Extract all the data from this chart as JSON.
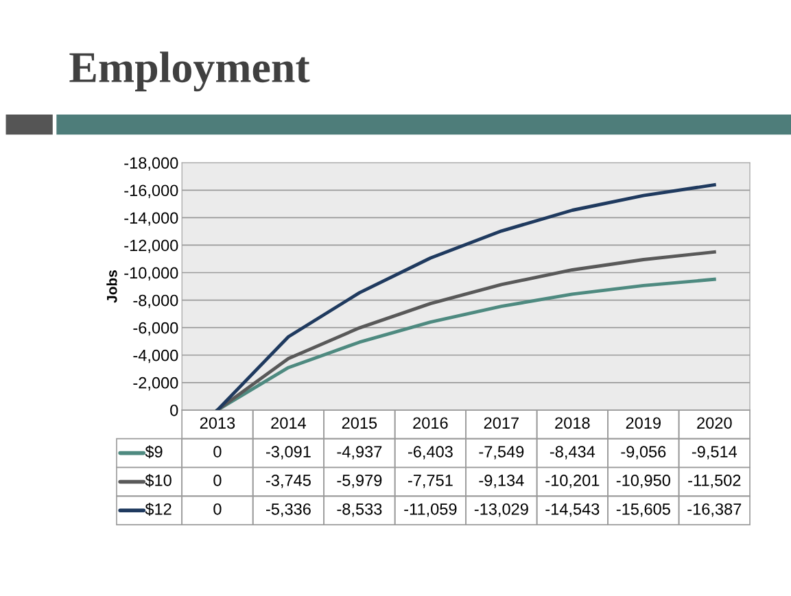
{
  "chart_data": {
    "type": "line",
    "title": "Employment",
    "ylabel": "Jobs",
    "categories": [
      "2013",
      "2014",
      "2015",
      "2016",
      "2017",
      "2018",
      "2019",
      "2020"
    ],
    "series": [
      {
        "name": "$9",
        "color": "#4e8a80",
        "values": [
          0,
          -3091,
          -4937,
          -6403,
          -7549,
          -8434,
          -9056,
          -9514
        ],
        "value_labels": [
          "0",
          "-3,091",
          "-4,937",
          "-6,403",
          "-7,549",
          "-8,434",
          "-9,056",
          "-9,514"
        ]
      },
      {
        "name": "$10",
        "color": "#595959",
        "values": [
          0,
          -3745,
          -5979,
          -7751,
          -9134,
          -10201,
          -10950,
          -11502
        ],
        "value_labels": [
          "0",
          "-3,745",
          "-5,979",
          "-7,751",
          "-9,134",
          "-10,201",
          "-10,950",
          "-11,502"
        ]
      },
      {
        "name": "$12",
        "color": "#1f3a5f",
        "values": [
          0,
          -5336,
          -8533,
          -11059,
          -13029,
          -14543,
          -15605,
          -16387
        ],
        "value_labels": [
          "0",
          "-5,336",
          "-8,533",
          "-11,059",
          "-13,029",
          "-14,543",
          "-15,605",
          "-16,387"
        ]
      }
    ],
    "ylim": [
      0,
      -18000
    ],
    "yticks": [
      {
        "value": 0,
        "label": "0"
      },
      {
        "value": -2000,
        "label": "-2,000"
      },
      {
        "value": -4000,
        "label": "-4,000"
      },
      {
        "value": -6000,
        "label": "-6,000"
      },
      {
        "value": -8000,
        "label": "-8,000"
      },
      {
        "value": -10000,
        "label": "-10,000"
      },
      {
        "value": -12000,
        "label": "-12,000"
      },
      {
        "value": -14000,
        "label": "-14,000"
      },
      {
        "value": -16000,
        "label": "-16,000"
      },
      {
        "value": -18000,
        "label": "-18,000"
      }
    ],
    "grid": "y",
    "legend": "bottom",
    "marker": "none",
    "line_style": "solid"
  }
}
